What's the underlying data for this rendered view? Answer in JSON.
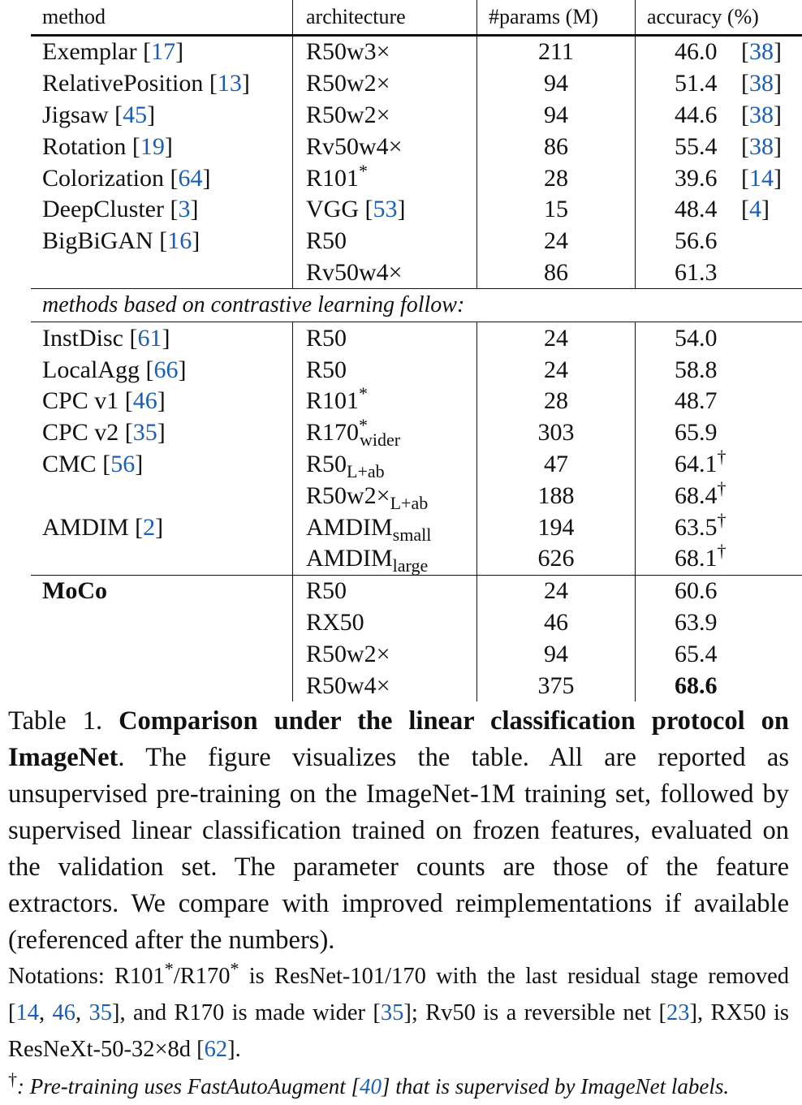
{
  "table": {
    "headers": {
      "method": "method",
      "architecture": "architecture",
      "params": "#params (M)",
      "accuracy": "accuracy (%)"
    },
    "group1": [
      {
        "method": "Exemplar",
        "method_cite": "17",
        "arch": "R50w3×",
        "params": "211",
        "acc": "46.0",
        "acc_cite": "38"
      },
      {
        "method": "RelativePosition",
        "method_cite": "13",
        "arch": "R50w2×",
        "params": "94",
        "acc": "51.4",
        "acc_cite": "38"
      },
      {
        "method": "Jigsaw",
        "method_cite": "45",
        "arch": "R50w2×",
        "params": "94",
        "acc": "44.6",
        "acc_cite": "38"
      },
      {
        "method": "Rotation",
        "method_cite": "19",
        "arch": "Rv50w4×",
        "params": "86",
        "acc": "55.4",
        "acc_cite": "38"
      },
      {
        "method": "Colorization",
        "method_cite": "64",
        "arch": "R101",
        "arch_sup": "*",
        "params": "28",
        "acc": "39.6",
        "acc_cite": "14"
      },
      {
        "method": "DeepCluster",
        "method_cite": "3",
        "arch": "VGG",
        "arch_cite": "53",
        "params": "15",
        "acc": "48.4",
        "acc_cite": "4"
      },
      {
        "method": "BigBiGAN",
        "method_cite": "16",
        "arch": "R50",
        "params": "24",
        "acc": "56.6"
      },
      {
        "method": "",
        "arch": "Rv50w4×",
        "params": "86",
        "acc": "61.3"
      }
    ],
    "section_label": "methods based on contrastive learning follow:",
    "group2": [
      {
        "method": "InstDisc",
        "method_cite": "61",
        "arch": "R50",
        "params": "24",
        "acc": "54.0"
      },
      {
        "method": "LocalAgg",
        "method_cite": "66",
        "arch": "R50",
        "params": "24",
        "acc": "58.8"
      },
      {
        "method": "CPC v1",
        "method_cite": "46",
        "arch": "R101",
        "arch_sup": "*",
        "params": "28",
        "acc": "48.7"
      },
      {
        "method": "CPC v2",
        "method_cite": "35",
        "arch": "R170",
        "arch_sup": "*",
        "arch_sub": "wider",
        "params": "303",
        "acc": "65.9"
      },
      {
        "method": "CMC",
        "method_cite": "56",
        "arch": "R50",
        "arch_sub": "L+ab",
        "params": "47",
        "acc": "64.1",
        "acc_sup": "†"
      },
      {
        "method": "",
        "arch": "R50w2×",
        "arch_sub": "L+ab",
        "params": "188",
        "acc": "68.4",
        "acc_sup": "†"
      },
      {
        "method": "AMDIM",
        "method_cite": "2",
        "arch": "AMDIM",
        "arch_sub": "small",
        "params": "194",
        "acc": "63.5",
        "acc_sup": "†"
      },
      {
        "method": "",
        "arch": "AMDIM",
        "arch_sub": "large",
        "params": "626",
        "acc": "68.1",
        "acc_sup": "†"
      }
    ],
    "group3": [
      {
        "method": "MoCo",
        "arch": "R50",
        "params": "24",
        "acc": "60.6"
      },
      {
        "method": "",
        "arch": "RX50",
        "params": "46",
        "acc": "63.9"
      },
      {
        "method": "",
        "arch": "R50w2×",
        "params": "94",
        "acc": "65.4"
      },
      {
        "method": "",
        "arch": "R50w4×",
        "params": "375",
        "acc": "68.6",
        "acc_bold": true
      }
    ]
  },
  "caption": {
    "label": "Table 1.",
    "title": "Comparison under the linear classification protocol on ImageNet",
    "text": ". The figure visualizes the table. All are reported as unsupervised pre-training on the ImageNet-1M training set, followed by supervised linear classification trained on frozen features, evaluated on the validation set. The parameter counts are those of the feature extractors. We compare with improved reimplementations if available (referenced after the numbers)."
  },
  "notations": {
    "t1": "Notations: R101",
    "s1": "*",
    "t2": "/R170",
    "s2": "*",
    "t3": " is ResNet-101/170 with the last residual stage removed [",
    "c1": "14",
    "t4": ", ",
    "c2": "46",
    "t5": ", ",
    "c3": "35",
    "t6": "], and R170 is made wider [",
    "c4": "35",
    "t7": "]; Rv50 is a reversible net [",
    "c5": "23",
    "t8": "], RX50 is ResNeXt-50-32×8d [",
    "c6": "62",
    "t9": "]."
  },
  "footnote": {
    "dagger": "†",
    "t1": ": Pre-training uses FastAutoAugment [",
    "c1": "40",
    "t2": "] that is supervised by ImageNet labels."
  },
  "colors": {
    "citation": "#1a5fb4",
    "text": "#111111"
  }
}
